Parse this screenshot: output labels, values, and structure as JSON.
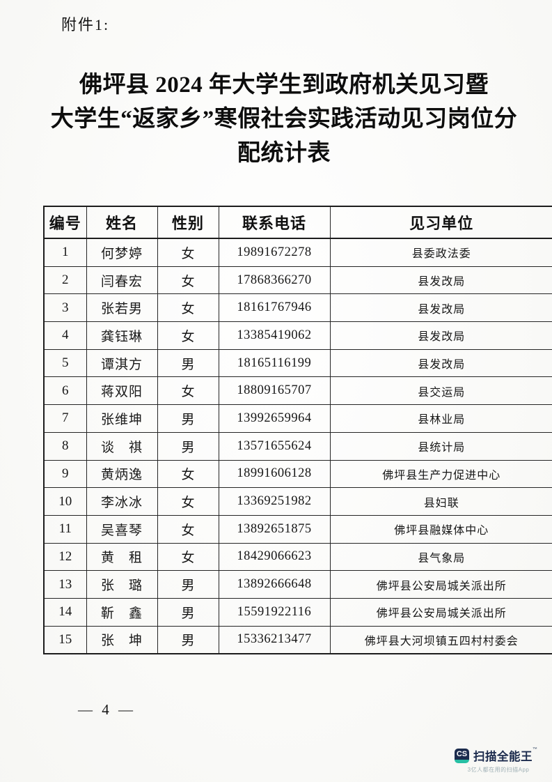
{
  "page": {
    "attachment_label": "附件1:",
    "title_lines": [
      "佛坪县 2024 年大学生到政府机关见习暨",
      "大学生“返家乡”寒假社会实践活动见习岗位分",
      "配统计表"
    ],
    "page_number": "— 4 —"
  },
  "table": {
    "headers": [
      "编号",
      "姓名",
      "性别",
      "联系电话",
      "见习单位"
    ],
    "rows": [
      {
        "no": "1",
        "name": "何梦婷",
        "gender": "女",
        "phone": "19891672278",
        "unit": "县委政法委"
      },
      {
        "no": "2",
        "name": "闫春宏",
        "gender": "女",
        "phone": "17868366270",
        "unit": "县发改局"
      },
      {
        "no": "3",
        "name": "张若男",
        "gender": "女",
        "phone": "18161767946",
        "unit": "县发改局"
      },
      {
        "no": "4",
        "name": "龚钰琳",
        "gender": "女",
        "phone": "13385419062",
        "unit": "县发改局"
      },
      {
        "no": "5",
        "name": "谭淇方",
        "gender": "男",
        "phone": "18165116199",
        "unit": "县发改局"
      },
      {
        "no": "6",
        "name": "蒋双阳",
        "gender": "女",
        "phone": "18809165707",
        "unit": "县交运局"
      },
      {
        "no": "7",
        "name": "张维坤",
        "gender": "男",
        "phone": "13992659964",
        "unit": "县林业局"
      },
      {
        "no": "8",
        "name": "谈　祺",
        "gender": "男",
        "phone": "13571655624",
        "unit": "县统计局"
      },
      {
        "no": "9",
        "name": "黄炳逸",
        "gender": "女",
        "phone": "18991606128",
        "unit": "佛坪县生产力促进中心"
      },
      {
        "no": "10",
        "name": "李冰冰",
        "gender": "女",
        "phone": "13369251982",
        "unit": "县妇联"
      },
      {
        "no": "11",
        "name": "吴喜琴",
        "gender": "女",
        "phone": "13892651875",
        "unit": "佛坪县融媒体中心"
      },
      {
        "no": "12",
        "name": "黄　租",
        "gender": "女",
        "phone": "18429066623",
        "unit": "县气象局"
      },
      {
        "no": "13",
        "name": "张　璐",
        "gender": "男",
        "phone": "13892666648",
        "unit": "佛坪县公安局城关派出所"
      },
      {
        "no": "14",
        "name": "靳　鑫",
        "gender": "男",
        "phone": "15591922116",
        "unit": "佛坪县公安局城关派出所"
      },
      {
        "no": "15",
        "name": "张　坤",
        "gender": "男",
        "phone": "15336213477",
        "unit": "佛坪县大河坝镇五四村村委会"
      }
    ]
  },
  "watermark": {
    "logo_text": "CS",
    "brand": "扫描全能王",
    "tm": "™",
    "tagline": "3亿人都在用的扫描App",
    "colors": {
      "badge_navy": "#1b2b4d",
      "badge_teal": "#27bfa4",
      "tagline_gray": "#9fb0b5"
    }
  }
}
